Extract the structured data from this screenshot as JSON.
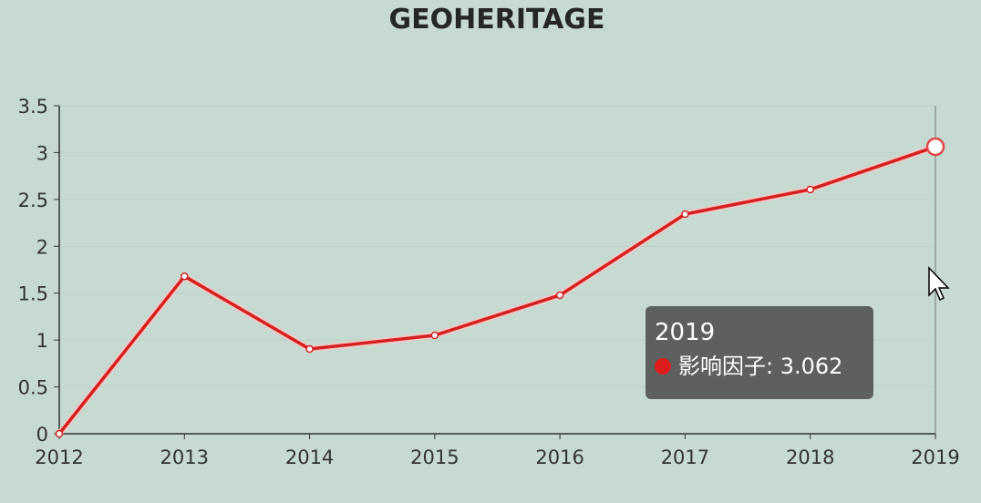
{
  "chart_data": {
    "type": "line",
    "title": "GEOHERITAGE",
    "categories": [
      "2012",
      "2013",
      "2014",
      "2015",
      "2016",
      "2017",
      "2018",
      "2019"
    ],
    "series": [
      {
        "name": "影响因子",
        "values": [
          0,
          1.68,
          0.904,
          1.05,
          1.478,
          2.343,
          2.606,
          3.062
        ],
        "color": "#d42020"
      }
    ],
    "ylim": [
      0,
      3.5
    ],
    "yticks": [
      "0",
      "0.5",
      "1",
      "1.5",
      "2",
      "2.5",
      "3",
      "3.5"
    ],
    "grid": true,
    "highlighted_category": "2019"
  },
  "tooltip": {
    "title": "2019",
    "series_name": "影响因子",
    "separator": ": ",
    "value": "3.062"
  }
}
